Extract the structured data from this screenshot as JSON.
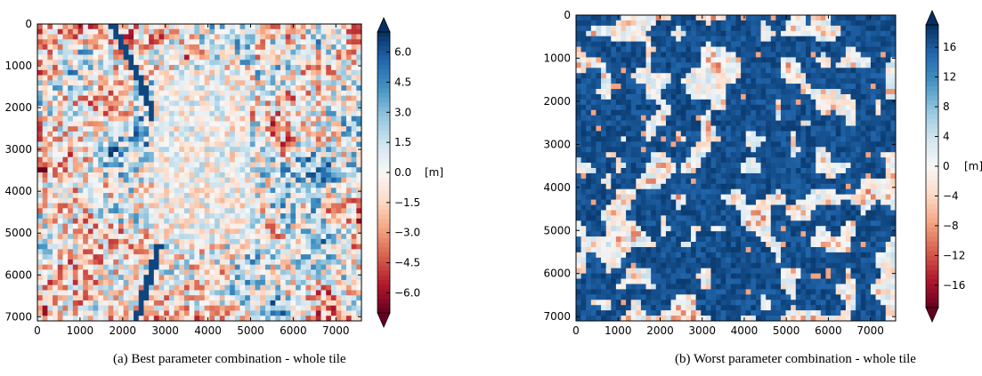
{
  "chart_data": [
    {
      "type": "heatmap",
      "caption": "(a) Best parameter combination - whole tile",
      "xlim": [
        0,
        7600
      ],
      "ylim": [
        7100,
        0
      ],
      "xticks": [
        0,
        1000,
        2000,
        3000,
        4000,
        5000,
        6000,
        7000
      ],
      "yticks": [
        0,
        1000,
        2000,
        3000,
        4000,
        5000,
        6000,
        7000
      ],
      "colorbar": {
        "range": [
          -7,
          7
        ],
        "ticks": [
          6.0,
          4.5,
          3.0,
          1.5,
          0.0,
          -1.5,
          -3.0,
          -4.5,
          -6.0
        ],
        "tick_labels": [
          "6.0",
          "4.5",
          "3.0",
          "1.5",
          "0.0",
          "−1.5",
          "−3.0",
          "−4.5",
          "−6.0"
        ],
        "unit": "[m]",
        "extend": "both",
        "colormap": "RdBu"
      },
      "grid": false
    },
    {
      "type": "heatmap",
      "caption": "(b) Worst parameter combination - whole tile",
      "xlim": [
        0,
        7600
      ],
      "ylim": [
        7100,
        0
      ],
      "xticks": [
        0,
        1000,
        2000,
        3000,
        4000,
        5000,
        6000,
        7000
      ],
      "yticks": [
        0,
        1000,
        2000,
        3000,
        4000,
        5000,
        6000,
        7000
      ],
      "colorbar": {
        "range": [
          -19,
          19
        ],
        "ticks": [
          16,
          12,
          8,
          4,
          0,
          -4,
          -8,
          -12,
          -16
        ],
        "tick_labels": [
          "16",
          "12",
          "8",
          "4",
          "0",
          "−4",
          "−8",
          "−12",
          "−16"
        ],
        "unit": "[m]",
        "extend": "both",
        "colormap": "RdBu"
      },
      "grid": false
    }
  ]
}
